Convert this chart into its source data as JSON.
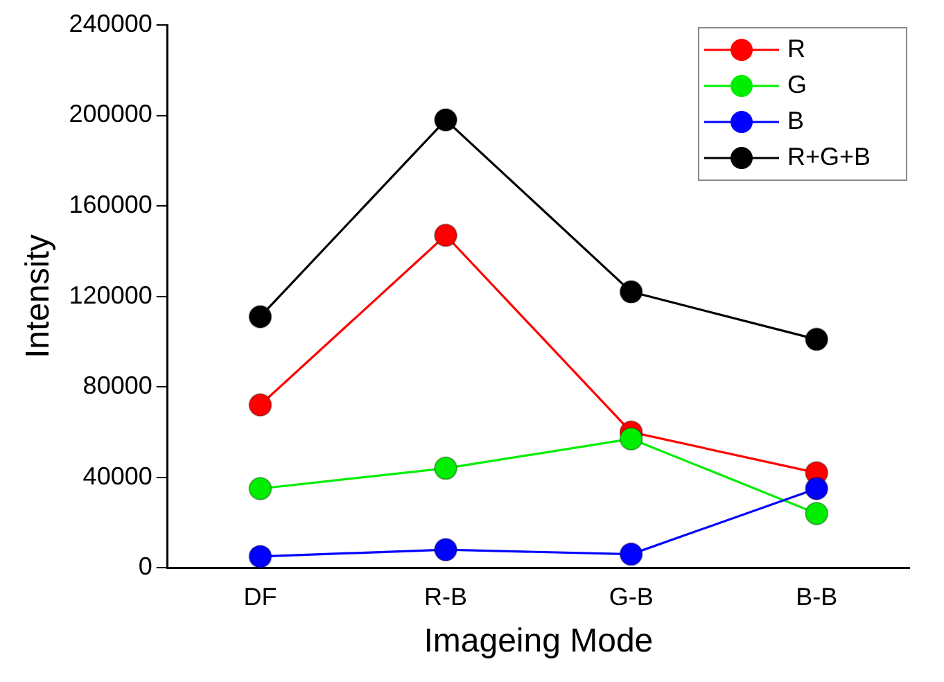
{
  "chart_data": {
    "type": "line",
    "xlabel": "Imageing Mode",
    "ylabel": "Intensity",
    "categories": [
      "DF",
      "R-B",
      "G-B",
      "B-B"
    ],
    "series": [
      {
        "name": "R",
        "color": "#ff0000",
        "values": [
          72000,
          147000,
          60000,
          42000
        ]
      },
      {
        "name": "G",
        "color": "#00ee00",
        "values": [
          35000,
          44000,
          57000,
          24000
        ]
      },
      {
        "name": "B",
        "color": "#0000ff",
        "values": [
          5000,
          8000,
          6000,
          35000
        ]
      },
      {
        "name": "R+G+B",
        "color": "#000000",
        "values": [
          111000,
          198000,
          122000,
          101000
        ]
      }
    ],
    "ylim": [
      0,
      240000
    ],
    "yticks": [
      0,
      40000,
      80000,
      120000,
      160000,
      200000,
      240000
    ],
    "grid": false,
    "legend": "top right",
    "marker": "circle",
    "line_style": "solid"
  }
}
